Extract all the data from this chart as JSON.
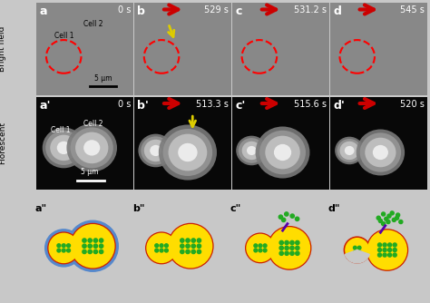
{
  "fig_width": 4.74,
  "fig_height": 3.34,
  "dpi": 100,
  "bg_color": "#c8c8c8",
  "row1_labels": [
    "a",
    "b",
    "c",
    "d"
  ],
  "row2_labels": [
    "a'",
    "b'",
    "c'",
    "d'"
  ],
  "row3_labels": [
    "a\"",
    "b\"",
    "c\"",
    "d\""
  ],
  "row1_times": [
    "0 s",
    "529 s",
    "531.2 s",
    "545 s"
  ],
  "row2_times": [
    "0 s",
    "513.3 s",
    "515.6 s",
    "520 s"
  ],
  "bright_field_label": "Bright field",
  "fluorescent_label": "Florescent",
  "outer_cell_color": "#5588cc",
  "inner_cell_color": "#ffdd00",
  "membrane_color": "#cc2200",
  "dot_color": "#22aa22",
  "arrow_color": "#cc0000",
  "yellow_arrow_color": "#ddcc00",
  "purple_mark_color": "#5500aa",
  "bright_field_bg": "#888888",
  "fluorescent_bg": "#080808"
}
